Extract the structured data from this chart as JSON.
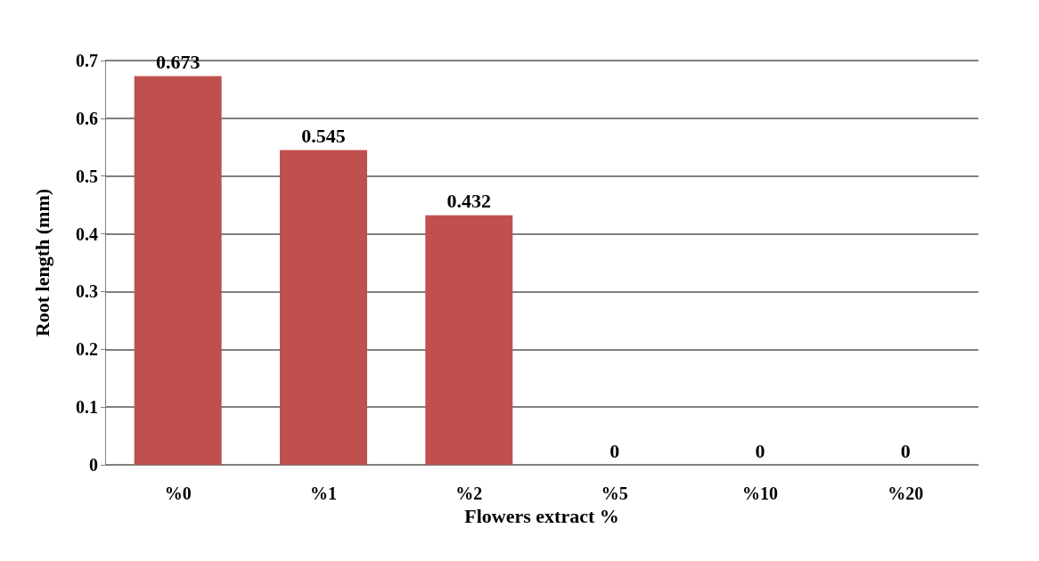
{
  "chart_data": {
    "type": "bar",
    "xlabel": "Flowers extract %",
    "ylabel": "Root length (mm)",
    "categories": [
      "%0",
      "%1",
      "%2",
      "%5",
      "%10",
      "%20"
    ],
    "values": [
      0.673,
      0.545,
      0.432,
      0,
      0,
      0
    ],
    "color": "#c0504d",
    "ylim": [
      0,
      0.7
    ],
    "yticks": [
      0,
      0.1,
      0.2,
      0.3,
      0.4,
      0.5,
      0.6,
      0.7
    ],
    "grid": "y",
    "data_labels": true
  }
}
